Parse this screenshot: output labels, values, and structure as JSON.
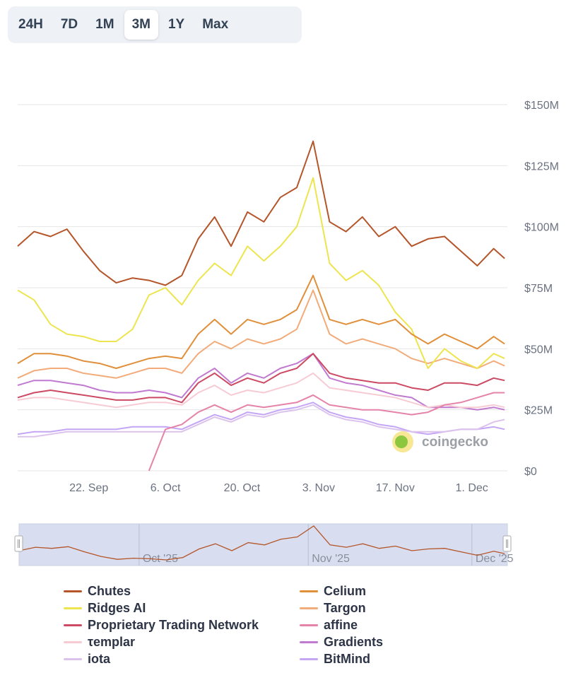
{
  "range_buttons": [
    "24H",
    "7D",
    "1M",
    "3M",
    "1Y",
    "Max"
  ],
  "active_range": "3M",
  "watermark": "coingecko",
  "chart_data": {
    "type": "line",
    "x": [
      "2025-09-09",
      "2025-09-12",
      "2025-09-15",
      "2025-09-18",
      "2025-09-21",
      "2025-09-24",
      "2025-09-27",
      "2025-09-30",
      "2025-10-03",
      "2025-10-06",
      "2025-10-09",
      "2025-10-12",
      "2025-10-15",
      "2025-10-18",
      "2025-10-21",
      "2025-10-24",
      "2025-10-27",
      "2025-10-30",
      "2025-11-02",
      "2025-11-05",
      "2025-11-08",
      "2025-11-11",
      "2025-11-14",
      "2025-11-17",
      "2025-11-20",
      "2025-11-23",
      "2025-11-26",
      "2025-11-29",
      "2025-12-02",
      "2025-12-05",
      "2025-12-07"
    ],
    "xticks": [
      {
        "date": "2025-09-22",
        "label": "22. Sep"
      },
      {
        "date": "2025-10-06",
        "label": "6. Oct"
      },
      {
        "date": "2025-10-20",
        "label": "20. Oct"
      },
      {
        "date": "2025-11-03",
        "label": "3. Nov"
      },
      {
        "date": "2025-11-17",
        "label": "17. Nov"
      },
      {
        "date": "2025-12-01",
        "label": "1. Dec"
      }
    ],
    "yticks": [
      {
        "v": 0,
        "label": "$0"
      },
      {
        "v": 25,
        "label": "$25M"
      },
      {
        "v": 50,
        "label": "$50M"
      },
      {
        "v": 75,
        "label": "$75M"
      },
      {
        "v": 100,
        "label": "$100M"
      },
      {
        "v": 125,
        "label": "$125M"
      },
      {
        "v": 150,
        "label": "$150M"
      }
    ],
    "xlim": [
      "2025-09-09",
      "2025-12-07"
    ],
    "ylim": [
      0,
      150
    ],
    "yunit": "USD millions",
    "grid": true,
    "legend_placement": "bottom",
    "navigator_labels": [
      {
        "date": "2025-10-01",
        "label": "Oct '25"
      },
      {
        "date": "2025-11-01",
        "label": "Nov '25"
      },
      {
        "date": "2025-12-01",
        "label": "Dec '25"
      }
    ],
    "series": [
      {
        "name": "Chutes",
        "color": "#b5552a",
        "values": [
          92,
          98,
          96,
          99,
          90,
          82,
          77,
          79,
          78,
          76,
          80,
          95,
          104,
          92,
          106,
          102,
          112,
          116,
          135,
          102,
          98,
          104,
          96,
          100,
          92,
          95,
          96,
          90,
          84,
          91,
          87
        ]
      },
      {
        "name": "Celium",
        "color": "#e08f3a",
        "values": [
          44,
          48,
          48,
          47,
          45,
          44,
          42,
          44,
          46,
          47,
          46,
          56,
          62,
          56,
          62,
          60,
          62,
          66,
          80,
          62,
          60,
          62,
          60,
          62,
          56,
          52,
          56,
          53,
          50,
          55,
          52
        ]
      },
      {
        "name": "Ridges AI",
        "color": "#ede54f",
        "values": [
          74,
          70,
          60,
          56,
          55,
          53,
          53,
          58,
          72,
          75,
          68,
          78,
          85,
          80,
          92,
          86,
          92,
          100,
          120,
          85,
          78,
          82,
          76,
          65,
          58,
          42,
          50,
          45,
          42,
          48,
          46
        ]
      },
      {
        "name": "Targon",
        "color": "#f2ab7a",
        "values": [
          38,
          41,
          42,
          42,
          40,
          39,
          38,
          40,
          42,
          42,
          40,
          48,
          53,
          50,
          54,
          52,
          54,
          58,
          74,
          56,
          52,
          54,
          52,
          50,
          46,
          44,
          46,
          44,
          42,
          45,
          43
        ]
      },
      {
        "name": "Proprietary Trading Network",
        "color": "#cc4a64",
        "values": [
          30,
          32,
          33,
          32,
          31,
          30,
          29,
          29,
          30,
          30,
          28,
          36,
          40,
          35,
          38,
          36,
          40,
          42,
          48,
          40,
          38,
          37,
          36,
          36,
          34,
          33,
          36,
          36,
          35,
          38,
          37
        ]
      },
      {
        "name": "affine",
        "color": "#e583a8",
        "values": [
          null,
          null,
          null,
          null,
          null,
          null,
          null,
          null,
          0,
          17,
          19,
          24,
          27,
          24,
          27,
          26,
          27,
          28,
          31,
          27,
          26,
          25,
          25,
          24,
          23,
          24,
          27,
          28,
          30,
          32,
          32
        ]
      },
      {
        "name": "τemplar",
        "color": "#f7cbd3",
        "values": [
          29,
          30,
          30,
          29,
          28,
          27,
          26,
          27,
          28,
          28,
          27,
          32,
          35,
          31,
          33,
          32,
          34,
          36,
          40,
          34,
          33,
          32,
          31,
          30,
          28,
          26,
          27,
          26,
          26,
          27,
          26
        ]
      },
      {
        "name": "Gradients",
        "color": "#c07ad0",
        "values": [
          35,
          37,
          37,
          36,
          35,
          33,
          32,
          32,
          33,
          32,
          30,
          38,
          42,
          36,
          40,
          38,
          42,
          44,
          48,
          38,
          36,
          35,
          33,
          31,
          30,
          26,
          26,
          26,
          25,
          26,
          25
        ]
      },
      {
        "name": "iota",
        "color": "#dcc3ec",
        "values": [
          14,
          14,
          15,
          16,
          16,
          16,
          16,
          16,
          16,
          16,
          16,
          19,
          22,
          20,
          23,
          22,
          24,
          25,
          27,
          23,
          21,
          20,
          18,
          17,
          16,
          16,
          16,
          17,
          17,
          20,
          21
        ]
      },
      {
        "name": "BitMind",
        "color": "#c4a6f5",
        "values": [
          15,
          16,
          16,
          17,
          17,
          17,
          17,
          18,
          18,
          18,
          17,
          20,
          23,
          21,
          24,
          23,
          25,
          26,
          28,
          24,
          22,
          21,
          19,
          18,
          16,
          15,
          16,
          17,
          17,
          18,
          17
        ]
      }
    ]
  }
}
